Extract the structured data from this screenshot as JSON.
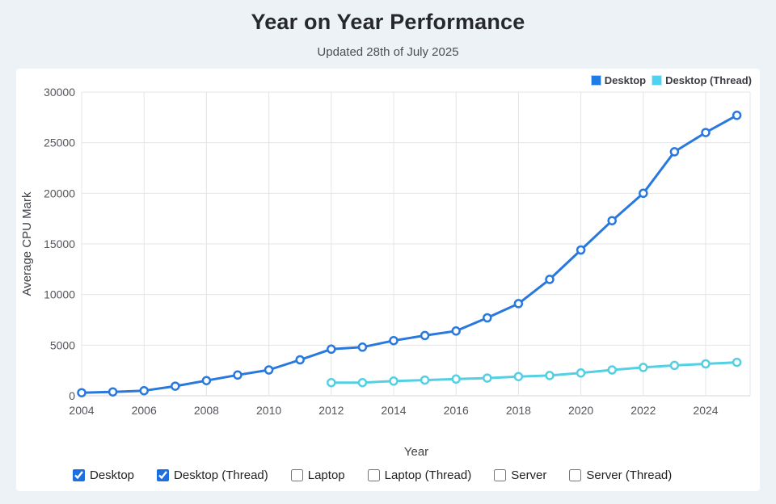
{
  "header": {
    "title": "Year on Year Performance",
    "subtitle": "Updated 28th of July 2025"
  },
  "chart_data": {
    "type": "line",
    "title": "Year on Year Performance",
    "subtitle": "Updated 28th of July 2025",
    "xlabel": "Year",
    "ylabel": "Average CPU Mark",
    "xlim": [
      2004,
      2025.45
    ],
    "ylim": [
      0,
      30000
    ],
    "xticks": [
      2004,
      2006,
      2008,
      2010,
      2012,
      2014,
      2016,
      2018,
      2020,
      2022,
      2024
    ],
    "yticks": [
      0,
      5000,
      10000,
      15000,
      20000,
      25000,
      30000
    ],
    "grid": true,
    "legend_position": "top-right",
    "x": [
      2004,
      2005,
      2006,
      2007,
      2008,
      2009,
      2010,
      2011,
      2012,
      2013,
      2014,
      2015,
      2016,
      2017,
      2018,
      2019,
      2020,
      2021,
      2022,
      2023,
      2024,
      2025
    ],
    "series": [
      {
        "name": "Desktop",
        "color": "#2878dd",
        "legend_color": "#1e7ce9",
        "legend_border": "#aed4f5",
        "marker": "circle-open",
        "values": [
          300,
          380,
          500,
          950,
          1500,
          2050,
          2550,
          3550,
          4600,
          4800,
          5450,
          5950,
          6400,
          7700,
          9100,
          11500,
          14400,
          17300,
          20000,
          24100,
          26000,
          27700
        ]
      },
      {
        "name": "Desktop (Thread)",
        "color": "#55cfe2",
        "legend_color": "#4dd2f2",
        "legend_border": "#c3ecf9",
        "marker": "circle-open",
        "values": [
          null,
          null,
          null,
          null,
          null,
          null,
          null,
          null,
          1300,
          1300,
          1450,
          1550,
          1650,
          1750,
          1900,
          2000,
          2250,
          2550,
          2800,
          3000,
          3150,
          3300
        ]
      }
    ]
  },
  "controls": {
    "checkboxes": [
      {
        "label": "Desktop",
        "checked": true
      },
      {
        "label": "Desktop (Thread)",
        "checked": true
      },
      {
        "label": "Laptop",
        "checked": false
      },
      {
        "label": "Laptop (Thread)",
        "checked": false
      },
      {
        "label": "Server",
        "checked": false
      },
      {
        "label": "Server (Thread)",
        "checked": false
      }
    ]
  },
  "colors": {
    "page_bg": "#edf2f6",
    "card_bg": "#ffffff",
    "grid": "#e3e4e6",
    "tick_text": "#53565b",
    "checkbox_accent": "#1d6fe0"
  }
}
